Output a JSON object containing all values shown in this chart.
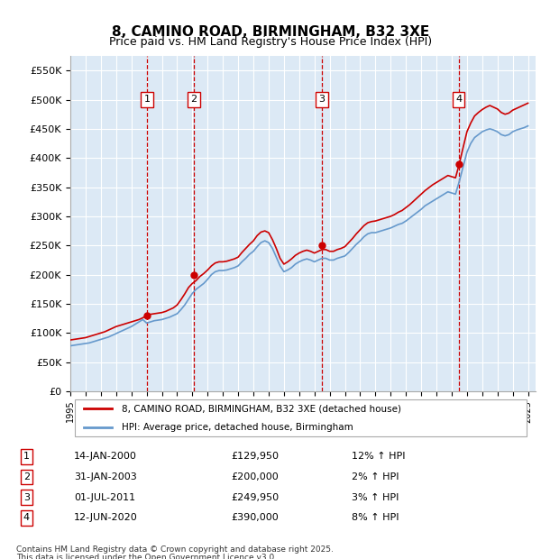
{
  "title": "8, CAMINO ROAD, BIRMINGHAM, B32 3XE",
  "subtitle": "Price paid vs. HM Land Registry's House Price Index (HPI)",
  "ylabel_prefix": "£",
  "yticks": [
    0,
    50000,
    100000,
    150000,
    200000,
    250000,
    300000,
    350000,
    400000,
    450000,
    500000,
    550000
  ],
  "ytick_labels": [
    "£0",
    "£50K",
    "£100K",
    "£150K",
    "£200K",
    "£250K",
    "£300K",
    "£350K",
    "£400K",
    "£450K",
    "£500K",
    "£550K"
  ],
  "xlim_start": 1995.0,
  "xlim_end": 2025.5,
  "ylim_min": 0,
  "ylim_max": 575000,
  "background_color": "#dce9f5",
  "plot_bg_color": "#dce9f5",
  "grid_color": "#ffffff",
  "red_line_color": "#cc0000",
  "blue_line_color": "#6699cc",
  "sale_marker_color": "#cc0000",
  "vline_color": "#cc0000",
  "label_box_color": "#ffffff",
  "label_box_edge": "#cc0000",
  "transactions": [
    {
      "num": 1,
      "date_str": "14-JAN-2000",
      "price": 129950,
      "pct": "12%",
      "x_year": 2000.04
    },
    {
      "num": 2,
      "date_str": "31-JAN-2003",
      "price": 200000,
      "pct": "2%",
      "x_year": 2003.08
    },
    {
      "num": 3,
      "date_str": "01-JUL-2011",
      "price": 249950,
      "pct": "3%",
      "x_year": 2011.5
    },
    {
      "num": 4,
      "date_str": "12-JUN-2020",
      "price": 390000,
      "pct": "8%",
      "x_year": 2020.45
    }
  ],
  "legend_line1": "8, CAMINO ROAD, BIRMINGHAM, B32 3XE (detached house)",
  "legend_line2": "HPI: Average price, detached house, Birmingham",
  "footer1": "Contains HM Land Registry data © Crown copyright and database right 2025.",
  "footer2": "This data is licensed under the Open Government Licence v3.0.",
  "hpi_data_x": [
    1995.0,
    1995.25,
    1995.5,
    1995.75,
    1996.0,
    1996.25,
    1996.5,
    1996.75,
    1997.0,
    1997.25,
    1997.5,
    1997.75,
    1998.0,
    1998.25,
    1998.5,
    1998.75,
    1999.0,
    1999.25,
    1999.5,
    1999.75,
    2000.0,
    2000.25,
    2000.5,
    2000.75,
    2001.0,
    2001.25,
    2001.5,
    2001.75,
    2002.0,
    2002.25,
    2002.5,
    2002.75,
    2003.0,
    2003.25,
    2003.5,
    2003.75,
    2004.0,
    2004.25,
    2004.5,
    2004.75,
    2005.0,
    2005.25,
    2005.5,
    2005.75,
    2006.0,
    2006.25,
    2006.5,
    2006.75,
    2007.0,
    2007.25,
    2007.5,
    2007.75,
    2008.0,
    2008.25,
    2008.5,
    2008.75,
    2009.0,
    2009.25,
    2009.5,
    2009.75,
    2010.0,
    2010.25,
    2010.5,
    2010.75,
    2011.0,
    2011.25,
    2011.5,
    2011.75,
    2012.0,
    2012.25,
    2012.5,
    2012.75,
    2013.0,
    2013.25,
    2013.5,
    2013.75,
    2014.0,
    2014.25,
    2014.5,
    2014.75,
    2015.0,
    2015.25,
    2015.5,
    2015.75,
    2016.0,
    2016.25,
    2016.5,
    2016.75,
    2017.0,
    2017.25,
    2017.5,
    2017.75,
    2018.0,
    2018.25,
    2018.5,
    2018.75,
    2019.0,
    2019.25,
    2019.5,
    2019.75,
    2020.0,
    2020.25,
    2020.5,
    2020.75,
    2021.0,
    2021.25,
    2021.5,
    2021.75,
    2022.0,
    2022.25,
    2022.5,
    2022.75,
    2023.0,
    2023.25,
    2023.5,
    2023.75,
    2024.0,
    2024.25,
    2024.5,
    2024.75,
    2025.0
  ],
  "hpi_data_y": [
    78000,
    79000,
    80000,
    81000,
    82000,
    83000,
    85000,
    87000,
    89000,
    91000,
    93000,
    96000,
    99000,
    102000,
    105000,
    108000,
    111000,
    115000,
    119000,
    123000,
    117000,
    119000,
    121000,
    122000,
    123000,
    125000,
    127000,
    130000,
    133000,
    140000,
    148000,
    158000,
    168000,
    175000,
    180000,
    185000,
    192000,
    200000,
    205000,
    207000,
    207000,
    208000,
    210000,
    212000,
    215000,
    222000,
    228000,
    235000,
    240000,
    248000,
    255000,
    258000,
    255000,
    245000,
    230000,
    215000,
    205000,
    208000,
    212000,
    218000,
    222000,
    225000,
    227000,
    225000,
    222000,
    225000,
    228000,
    228000,
    225000,
    225000,
    228000,
    230000,
    232000,
    238000,
    245000,
    252000,
    258000,
    265000,
    270000,
    272000,
    272000,
    274000,
    276000,
    278000,
    280000,
    283000,
    286000,
    288000,
    292000,
    297000,
    302000,
    307000,
    312000,
    318000,
    322000,
    326000,
    330000,
    334000,
    338000,
    342000,
    340000,
    338000,
    360000,
    385000,
    410000,
    425000,
    435000,
    440000,
    445000,
    448000,
    450000,
    448000,
    445000,
    440000,
    438000,
    440000,
    445000,
    448000,
    450000,
    452000,
    455000
  ],
  "red_data_x": [
    1995.0,
    1995.25,
    1995.5,
    1995.75,
    1996.0,
    1996.25,
    1996.5,
    1996.75,
    1997.0,
    1997.25,
    1997.5,
    1997.75,
    1998.0,
    1998.25,
    1998.5,
    1998.75,
    1999.0,
    1999.25,
    1999.5,
    1999.75,
    2000.0,
    2000.25,
    2000.5,
    2000.75,
    2001.0,
    2001.25,
    2001.5,
    2001.75,
    2002.0,
    2002.25,
    2002.5,
    2002.75,
    2003.0,
    2003.25,
    2003.5,
    2003.75,
    2004.0,
    2004.25,
    2004.5,
    2004.75,
    2005.0,
    2005.25,
    2005.5,
    2005.75,
    2006.0,
    2006.25,
    2006.5,
    2006.75,
    2007.0,
    2007.25,
    2007.5,
    2007.75,
    2008.0,
    2008.25,
    2008.5,
    2008.75,
    2009.0,
    2009.25,
    2009.5,
    2009.75,
    2010.0,
    2010.25,
    2010.5,
    2010.75,
    2011.0,
    2011.25,
    2011.5,
    2011.75,
    2012.0,
    2012.25,
    2012.5,
    2012.75,
    2013.0,
    2013.25,
    2013.5,
    2013.75,
    2014.0,
    2014.25,
    2014.5,
    2014.75,
    2015.0,
    2015.25,
    2015.5,
    2015.75,
    2016.0,
    2016.25,
    2016.5,
    2016.75,
    2017.0,
    2017.25,
    2017.5,
    2017.75,
    2018.0,
    2018.25,
    2018.5,
    2018.75,
    2019.0,
    2019.25,
    2019.5,
    2019.75,
    2020.0,
    2020.25,
    2020.5,
    2020.75,
    2021.0,
    2021.25,
    2021.5,
    2021.75,
    2022.0,
    2022.25,
    2022.5,
    2022.75,
    2023.0,
    2023.25,
    2023.5,
    2023.75,
    2024.0,
    2024.25,
    2024.5,
    2024.75,
    2025.0
  ],
  "red_data_y": [
    88000,
    89000,
    90000,
    91000,
    92000,
    94000,
    96000,
    98000,
    100000,
    102000,
    105000,
    108000,
    111000,
    113000,
    115000,
    117000,
    119000,
    121000,
    123000,
    126000,
    130000,
    132000,
    133000,
    134000,
    135000,
    137000,
    140000,
    143000,
    148000,
    157000,
    167000,
    178000,
    185000,
    190000,
    197000,
    202000,
    208000,
    215000,
    220000,
    222000,
    222000,
    223000,
    225000,
    227000,
    230000,
    238000,
    245000,
    252000,
    258000,
    267000,
    273000,
    275000,
    272000,
    260000,
    245000,
    228000,
    218000,
    222000,
    227000,
    233000,
    237000,
    240000,
    242000,
    240000,
    237000,
    240000,
    243000,
    243000,
    240000,
    240000,
    243000,
    245000,
    248000,
    255000,
    262000,
    270000,
    277000,
    284000,
    289000,
    291000,
    292000,
    294000,
    296000,
    298000,
    300000,
    303000,
    307000,
    310000,
    315000,
    320000,
    326000,
    332000,
    338000,
    344000,
    349000,
    354000,
    358000,
    362000,
    366000,
    370000,
    368000,
    366000,
    390000,
    418000,
    445000,
    460000,
    472000,
    478000,
    483000,
    487000,
    490000,
    487000,
    484000,
    478000,
    475000,
    477000,
    482000,
    485000,
    488000,
    491000,
    494000
  ]
}
